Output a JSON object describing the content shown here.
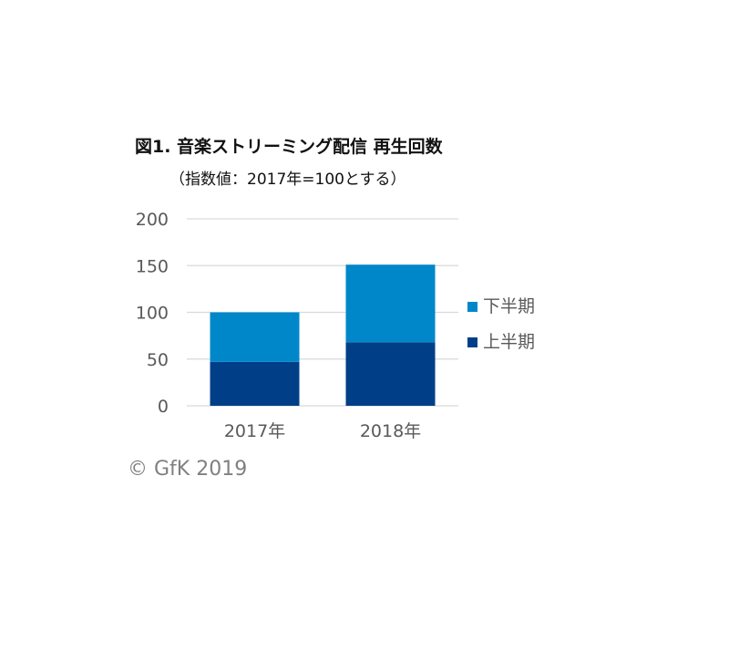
{
  "chart_data": {
    "type": "bar",
    "stacked": true,
    "title": "図1. 音楽ストリーミング配信 再生回数",
    "subtitle": "（指数値：2017年=100とする）",
    "categories": [
      "2017年",
      "2018年"
    ],
    "series": [
      {
        "name": "上半期",
        "values": [
          47,
          68
        ],
        "color": "#003f87"
      },
      {
        "name": "下半期",
        "values": [
          53,
          83
        ],
        "color": "#0087c9"
      }
    ],
    "ylim": [
      0,
      200
    ],
    "yticks": [
      0,
      50,
      100,
      150,
      200
    ],
    "grid": true,
    "legend_position": "right",
    "legend_order": [
      "下半期",
      "上半期"
    ]
  },
  "copyright": "© GfK 2019"
}
